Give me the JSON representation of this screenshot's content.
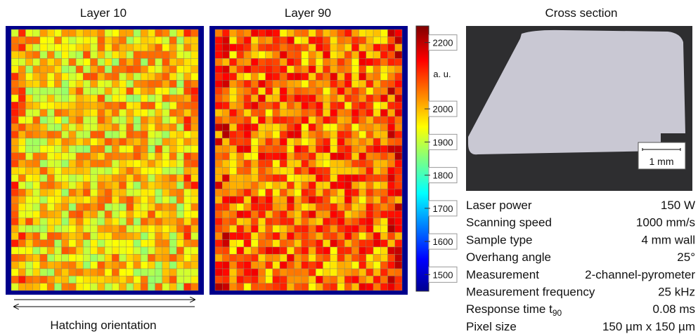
{
  "panels": [
    {
      "title": "Layer 10"
    },
    {
      "title": "Layer 90"
    },
    {
      "title": "Cross section"
    }
  ],
  "colorbar": {
    "unit": "a. u.",
    "lim": [
      1450,
      2250
    ],
    "ticks": [
      1500,
      1600,
      1700,
      1800,
      1900,
      2000,
      2200
    ]
  },
  "hatching_label": "Hatching orientation",
  "scale_bar": "1 mm",
  "parameters": [
    {
      "label": "Laser power",
      "value": "150 W"
    },
    {
      "label": "Scanning speed",
      "value": "1000 mm/s"
    },
    {
      "label": "Sample type",
      "value": "4 mm wall"
    },
    {
      "label": "Overhang angle",
      "value": "25°"
    },
    {
      "label": "Measurement",
      "value": "2-channel-pyrometer"
    },
    {
      "label": "Measurement frequency",
      "value": "25 kHz"
    },
    {
      "label": "Response time t",
      "sub": "90",
      "value": "0.08 ms"
    },
    {
      "label": "Pixel size",
      "value": "150 µm x 150 µm"
    }
  ]
}
